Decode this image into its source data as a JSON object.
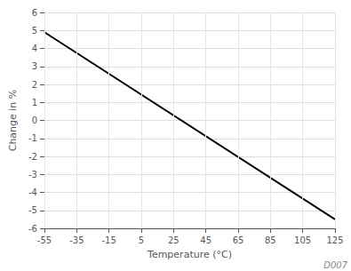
{
  "chart_data": {
    "type": "line",
    "x": [
      -55,
      125
    ],
    "values": [
      4.9,
      -5.5
    ],
    "color": "#000000",
    "xlabel": "Temperature (°C)",
    "ylabel": "Change in %",
    "xlim": [
      -55,
      125
    ],
    "ylim": [
      -6,
      6
    ],
    "xticks": [
      -55,
      -35,
      -15,
      5,
      25,
      45,
      65,
      85,
      105,
      125
    ],
    "yticks": [
      -6,
      -5,
      -4,
      -3,
      -2,
      -1,
      0,
      1,
      2,
      3,
      4,
      5,
      6
    ],
    "grid": true,
    "annotations": [
      "D007"
    ]
  }
}
